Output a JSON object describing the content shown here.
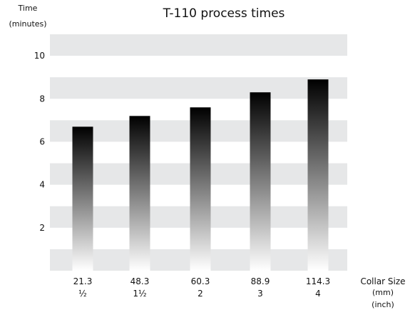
{
  "chart_data": {
    "type": "bar",
    "title": "T-110 process times",
    "ylabel": [
      "Time",
      "(minutes)"
    ],
    "xlabel": [
      "Collar Size",
      "(mm)",
      "(inch)"
    ],
    "categories": [
      {
        "mm": "21.3",
        "inch": "½"
      },
      {
        "mm": "48.3",
        "inch": "1½"
      },
      {
        "mm": "60.3",
        "inch": "2"
      },
      {
        "mm": "88.9",
        "inch": "3"
      },
      {
        "mm": "114.3",
        "inch": "4"
      }
    ],
    "values": [
      6.7,
      7.2,
      7.6,
      8.3,
      8.9
    ],
    "yticks": [
      "2",
      "4",
      "6",
      "8",
      "10"
    ],
    "ylim": [
      0,
      11
    ],
    "grid": "alternating horizontal bands",
    "colors": {
      "band": "#e6e7e8",
      "bar_top": "#000000",
      "bar_bottom": "#ffffff"
    }
  }
}
